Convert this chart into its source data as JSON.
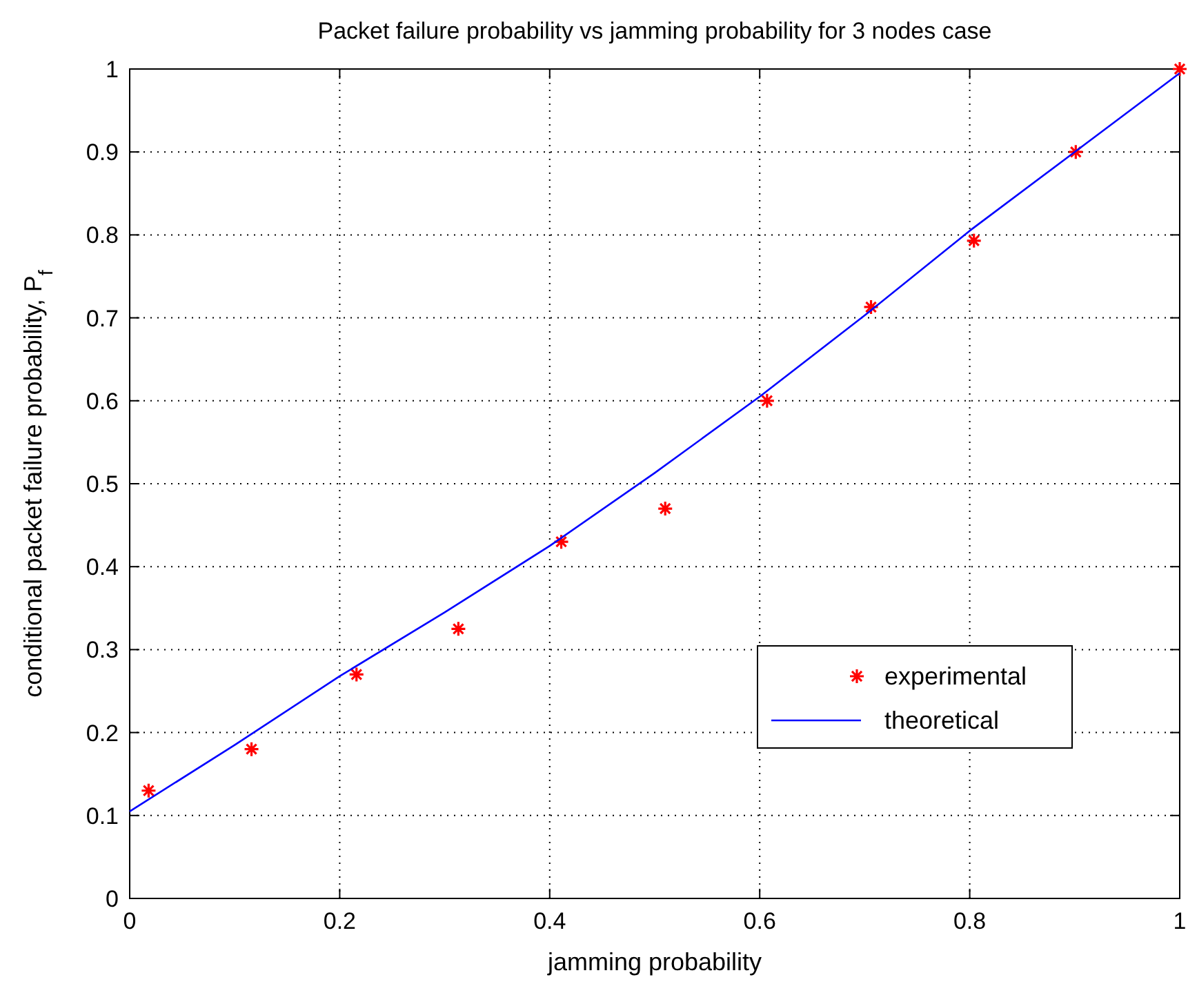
{
  "chart_data": {
    "type": "scatter",
    "title": "Packet failure probability vs jamming probability for 3 nodes case",
    "xlabel": "jamming probability",
    "ylabel": "conditional packet failure probability, P$_{f}$",
    "xlim": [
      0,
      1
    ],
    "ylim": [
      0,
      1
    ],
    "xticks": [
      0,
      0.2,
      0.4,
      0.6,
      0.8,
      1
    ],
    "yticks": [
      0,
      0.1,
      0.2,
      0.3,
      0.4,
      0.5,
      0.6,
      0.7,
      0.8,
      0.9,
      1
    ],
    "grid": true,
    "legend": "bottom right",
    "series": [
      {
        "name": "experimental",
        "color": "#ff0000",
        "marker": "cross",
        "x": [
          0.018,
          0.116,
          0.216,
          0.313,
          0.411,
          0.51,
          0.607,
          0.706,
          0.804,
          0.901,
          1
        ],
        "values": [
          0.13,
          0.18,
          0.27,
          0.325,
          0.43,
          0.47,
          0.6,
          0.713,
          0.793,
          0.9,
          1
        ]
      },
      {
        "name": "theoretical",
        "type": "line",
        "color": "#0000ff",
        "line_style": "solid",
        "x": [
          0,
          0.1,
          0.2,
          0.3,
          0.4,
          0.5,
          0.6,
          0.7,
          0.8,
          0.9,
          1
        ],
        "values": [
          0.105,
          0.185,
          0.268,
          0.345,
          0.425,
          0.513,
          0.605,
          0.703,
          0.805,
          0.9,
          0.995
        ]
      }
    ]
  }
}
